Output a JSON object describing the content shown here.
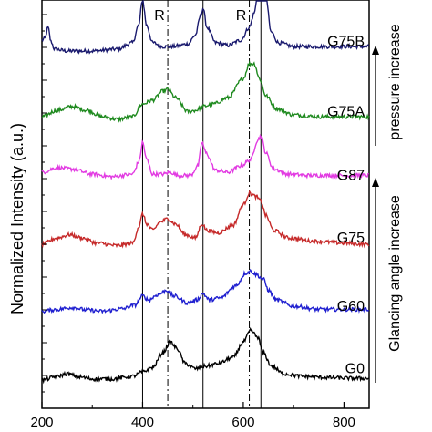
{
  "chart_data": {
    "type": "line",
    "ylabel": "Normalized Intensity (a.u.)",
    "x_ticks": [
      200,
      400,
      600,
      800
    ],
    "xlim": [
      200,
      850
    ],
    "reference_lines": [
      {
        "x": 400,
        "style": "solid",
        "label": ""
      },
      {
        "x": 450,
        "style": "dashdot",
        "label": "R"
      },
      {
        "x": 520,
        "style": "solid",
        "label": ""
      },
      {
        "x": 612,
        "style": "dashdot",
        "label": "R"
      },
      {
        "x": 635,
        "style": "solid",
        "label": ""
      }
    ],
    "annotations": [
      "pressure increase",
      "Glancing angle increase"
    ],
    "series": [
      {
        "name": "G75B",
        "color": "#1a1a6e",
        "offset": 5.55,
        "points": [
          [
            200,
            0.22
          ],
          [
            206,
            0.25
          ],
          [
            212,
            0.42
          ],
          [
            218,
            0.2
          ],
          [
            225,
            0.08
          ],
          [
            250,
            0.05
          ],
          [
            300,
            0.05
          ],
          [
            350,
            0.08
          ],
          [
            380,
            0.18
          ],
          [
            392,
            0.45
          ],
          [
            400,
            0.85
          ],
          [
            408,
            0.45
          ],
          [
            420,
            0.18
          ],
          [
            440,
            0.12
          ],
          [
            460,
            0.12
          ],
          [
            490,
            0.16
          ],
          [
            505,
            0.3
          ],
          [
            515,
            0.6
          ],
          [
            520,
            0.72
          ],
          [
            528,
            0.42
          ],
          [
            545,
            0.18
          ],
          [
            570,
            0.14
          ],
          [
            595,
            0.22
          ],
          [
            612,
            0.42
          ],
          [
            622,
            0.65
          ],
          [
            632,
            1.3
          ],
          [
            638,
            1.5
          ],
          [
            645,
            0.9
          ],
          [
            655,
            0.35
          ],
          [
            670,
            0.18
          ],
          [
            700,
            0.12
          ],
          [
            750,
            0.12
          ],
          [
            800,
            0.12
          ],
          [
            850,
            0.12
          ]
        ]
      },
      {
        "name": "G75A",
        "color": "#1f8a1f",
        "offset": 4.45,
        "points": [
          [
            200,
            0.12
          ],
          [
            230,
            0.22
          ],
          [
            260,
            0.28
          ],
          [
            290,
            0.22
          ],
          [
            320,
            0.12
          ],
          [
            350,
            0.08
          ],
          [
            380,
            0.12
          ],
          [
            400,
            0.32
          ],
          [
            420,
            0.38
          ],
          [
            440,
            0.52
          ],
          [
            450,
            0.55
          ],
          [
            465,
            0.42
          ],
          [
            490,
            0.2
          ],
          [
            505,
            0.22
          ],
          [
            520,
            0.28
          ],
          [
            540,
            0.32
          ],
          [
            570,
            0.42
          ],
          [
            600,
            0.72
          ],
          [
            612,
            0.95
          ],
          [
            622,
            0.95
          ],
          [
            632,
            0.72
          ],
          [
            645,
            0.45
          ],
          [
            665,
            0.25
          ],
          [
            700,
            0.15
          ],
          [
            750,
            0.12
          ],
          [
            800,
            0.12
          ],
          [
            850,
            0.12
          ]
        ]
      },
      {
        "name": "G87",
        "color": "#e23be2",
        "offset": 3.45,
        "points": [
          [
            200,
            0.25
          ],
          [
            230,
            0.32
          ],
          [
            260,
            0.3
          ],
          [
            300,
            0.22
          ],
          [
            340,
            0.18
          ],
          [
            380,
            0.22
          ],
          [
            393,
            0.42
          ],
          [
            400,
            0.72
          ],
          [
            408,
            0.45
          ],
          [
            420,
            0.22
          ],
          [
            440,
            0.22
          ],
          [
            455,
            0.25
          ],
          [
            470,
            0.2
          ],
          [
            495,
            0.2
          ],
          [
            510,
            0.35
          ],
          [
            518,
            0.72
          ],
          [
            526,
            0.55
          ],
          [
            545,
            0.28
          ],
          [
            570,
            0.25
          ],
          [
            595,
            0.35
          ],
          [
            615,
            0.45
          ],
          [
            628,
            0.75
          ],
          [
            635,
            0.82
          ],
          [
            645,
            0.55
          ],
          [
            660,
            0.3
          ],
          [
            690,
            0.22
          ],
          [
            730,
            0.2
          ],
          [
            780,
            0.2
          ],
          [
            850,
            0.2
          ]
        ]
      },
      {
        "name": "G75",
        "color": "#c62a2a",
        "offset": 2.47,
        "points": [
          [
            200,
            0.1
          ],
          [
            230,
            0.2
          ],
          [
            255,
            0.25
          ],
          [
            280,
            0.2
          ],
          [
            310,
            0.12
          ],
          [
            350,
            0.08
          ],
          [
            380,
            0.12
          ],
          [
            393,
            0.38
          ],
          [
            400,
            0.58
          ],
          [
            408,
            0.42
          ],
          [
            420,
            0.32
          ],
          [
            435,
            0.45
          ],
          [
            450,
            0.5
          ],
          [
            465,
            0.42
          ],
          [
            485,
            0.25
          ],
          [
            505,
            0.2
          ],
          [
            518,
            0.42
          ],
          [
            528,
            0.32
          ],
          [
            550,
            0.28
          ],
          [
            580,
            0.4
          ],
          [
            600,
            0.72
          ],
          [
            612,
            0.9
          ],
          [
            625,
            0.85
          ],
          [
            635,
            0.78
          ],
          [
            645,
            0.55
          ],
          [
            660,
            0.32
          ],
          [
            690,
            0.2
          ],
          [
            740,
            0.15
          ],
          [
            800,
            0.12
          ],
          [
            850,
            0.1
          ]
        ]
      },
      {
        "name": "G60",
        "color": "#2020d0",
        "offset": 1.4,
        "points": [
          [
            200,
            0.12
          ],
          [
            230,
            0.15
          ],
          [
            260,
            0.18
          ],
          [
            290,
            0.14
          ],
          [
            320,
            0.12
          ],
          [
            360,
            0.16
          ],
          [
            385,
            0.22
          ],
          [
            400,
            0.36
          ],
          [
            412,
            0.3
          ],
          [
            430,
            0.38
          ],
          [
            448,
            0.45
          ],
          [
            462,
            0.36
          ],
          [
            490,
            0.25
          ],
          [
            508,
            0.3
          ],
          [
            520,
            0.4
          ],
          [
            532,
            0.3
          ],
          [
            555,
            0.33
          ],
          [
            585,
            0.52
          ],
          [
            605,
            0.72
          ],
          [
            615,
            0.75
          ],
          [
            625,
            0.7
          ],
          [
            640,
            0.62
          ],
          [
            650,
            0.45
          ],
          [
            665,
            0.3
          ],
          [
            700,
            0.2
          ],
          [
            750,
            0.15
          ],
          [
            800,
            0.15
          ],
          [
            850,
            0.15
          ]
        ]
      },
      {
        "name": "G0",
        "color": "#000000",
        "offset": 0.42,
        "points": [
          [
            200,
            0.02
          ],
          [
            230,
            0.08
          ],
          [
            250,
            0.12
          ],
          [
            275,
            0.07
          ],
          [
            300,
            0.04
          ],
          [
            340,
            0.04
          ],
          [
            380,
            0.08
          ],
          [
            400,
            0.15
          ],
          [
            420,
            0.22
          ],
          [
            440,
            0.45
          ],
          [
            455,
            0.62
          ],
          [
            468,
            0.52
          ],
          [
            485,
            0.28
          ],
          [
            505,
            0.2
          ],
          [
            525,
            0.24
          ],
          [
            550,
            0.28
          ],
          [
            580,
            0.38
          ],
          [
            600,
            0.62
          ],
          [
            615,
            0.8
          ],
          [
            628,
            0.7
          ],
          [
            640,
            0.45
          ],
          [
            655,
            0.25
          ],
          [
            680,
            0.12
          ],
          [
            720,
            0.08
          ],
          [
            770,
            0.06
          ],
          [
            820,
            0.05
          ],
          [
            850,
            0.05
          ]
        ]
      }
    ]
  }
}
